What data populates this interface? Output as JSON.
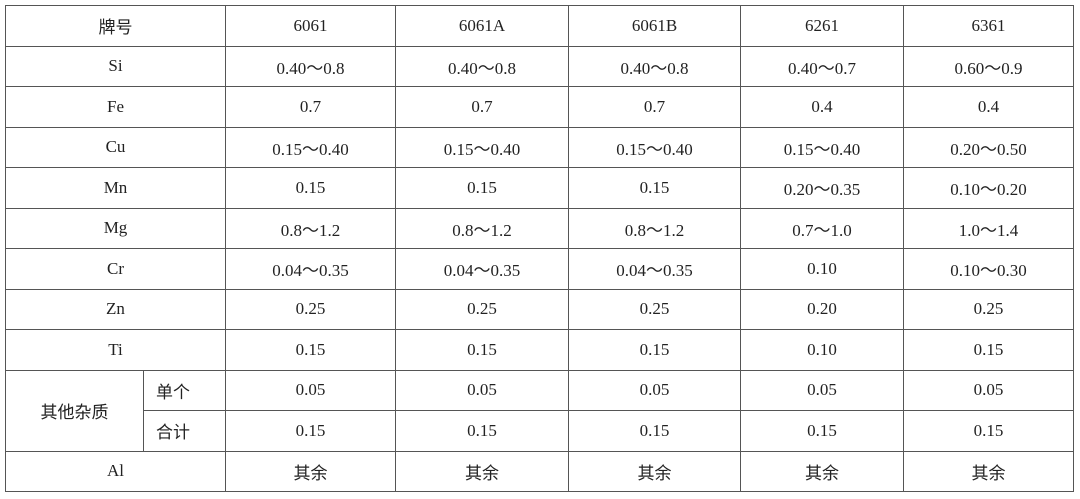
{
  "table": {
    "header": [
      "牌号",
      "6061",
      "6061A",
      "6061B",
      "6261",
      "6361"
    ],
    "rows": [
      {
        "label": "Si",
        "cells": [
          "0.40～0.8",
          "0.40～0.8",
          "0.40～0.8",
          "0.40～0.7",
          "0.60～0.9"
        ]
      },
      {
        "label": "Fe",
        "cells": [
          "0.7",
          "0.7",
          "0.7",
          "0.4",
          "0.4"
        ]
      },
      {
        "label": "Cu",
        "cells": [
          "0.15～0.40",
          "0.15～0.40",
          "0.15～0.40",
          "0.15～0.40",
          "0.20～0.50"
        ]
      },
      {
        "label": "Mn",
        "cells": [
          "0.15",
          "0.15",
          "0.15",
          "0.20～0.35",
          "0.10～0.20"
        ]
      },
      {
        "label": "Mg",
        "cells": [
          "0.8～1.2",
          "0.8～1.2",
          "0.8～1.2",
          "0.7～1.0",
          "1.0～1.4"
        ]
      },
      {
        "label": "Cr",
        "cells": [
          "0.04～0.35",
          "0.04～0.35",
          "0.04～0.35",
          "0.10",
          "0.10～0.30"
        ]
      },
      {
        "label": "Zn",
        "cells": [
          "0.25",
          "0.25",
          "0.25",
          "0.20",
          "0.25"
        ]
      },
      {
        "label": "Ti",
        "cells": [
          "0.15",
          "0.15",
          "0.15",
          "0.10",
          "0.15"
        ]
      }
    ],
    "impurities": {
      "label": "其他杂质",
      "rows": [
        {
          "label": "单个",
          "cells": [
            "0.05",
            "0.05",
            "0.05",
            "0.05",
            "0.05"
          ]
        },
        {
          "label": "合计",
          "cells": [
            "0.15",
            "0.15",
            "0.15",
            "0.15",
            "0.15"
          ]
        }
      ]
    },
    "footer": {
      "label": "Al",
      "cells": [
        "其余",
        "其余",
        "其余",
        "其余",
        "其余"
      ]
    }
  }
}
